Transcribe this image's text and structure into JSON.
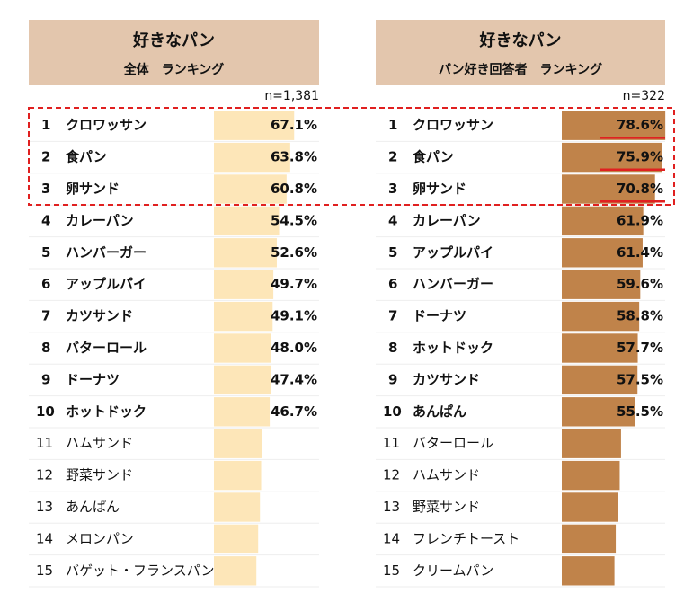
{
  "chart_data": [
    {
      "type": "bar",
      "title": "好きなパン",
      "subtitle": "全体　ランキング",
      "note": "n=1,381",
      "ranks": [
        1,
        2,
        3,
        4,
        5,
        6,
        7,
        8,
        9,
        10,
        11,
        12,
        13,
        14,
        15
      ],
      "categories": [
        "クロワッサン",
        "食パン",
        "卵サンド",
        "カレーパン",
        "ハンバーガー",
        "アップルパイ",
        "カツサンド",
        "バターロール",
        "ドーナツ",
        "ホットドック",
        "ハムサンド",
        "野菜サンド",
        "あんぱん",
        "メロンパン",
        "バゲット・フランスパン"
      ],
      "values": [
        67.1,
        63.8,
        60.8,
        54.5,
        52.6,
        49.7,
        49.1,
        48.0,
        47.4,
        46.7,
        40,
        39.5,
        38.5,
        37,
        35.5
      ],
      "value_labels": [
        "67.1%",
        "63.8%",
        "60.8%",
        "54.5%",
        "52.6%",
        "49.7%",
        "49.1%",
        "48.0%",
        "47.4%",
        "46.7%",
        null,
        null,
        null,
        null,
        null
      ],
      "color": "#fde6b8"
    },
    {
      "type": "bar",
      "title": "好きなパン",
      "subtitle": "パン好き回答者　ランキング",
      "note": "n=322",
      "ranks": [
        1,
        2,
        3,
        4,
        5,
        6,
        7,
        8,
        9,
        10,
        11,
        12,
        13,
        14,
        15
      ],
      "categories": [
        "クロワッサン",
        "食パン",
        "卵サンド",
        "カレーパン",
        "アップルパイ",
        "ハンバーガー",
        "ドーナツ",
        "ホットドック",
        "カツサンド",
        "あんぱん",
        "バターロール",
        "ハムサンド",
        "野菜サンド",
        "フレンチトースト",
        "クリームパン"
      ],
      "values": [
        78.6,
        75.9,
        70.8,
        61.9,
        61.4,
        59.6,
        58.8,
        57.7,
        57.5,
        55.5,
        45,
        44,
        43,
        41,
        40
      ],
      "value_labels": [
        "78.6%",
        "75.9%",
        "70.8%",
        "61.9%",
        "61.4%",
        "59.6%",
        "58.8%",
        "57.7%",
        "57.5%",
        "55.5%",
        null,
        null,
        null,
        null,
        null
      ],
      "color": "#c0834a"
    }
  ]
}
